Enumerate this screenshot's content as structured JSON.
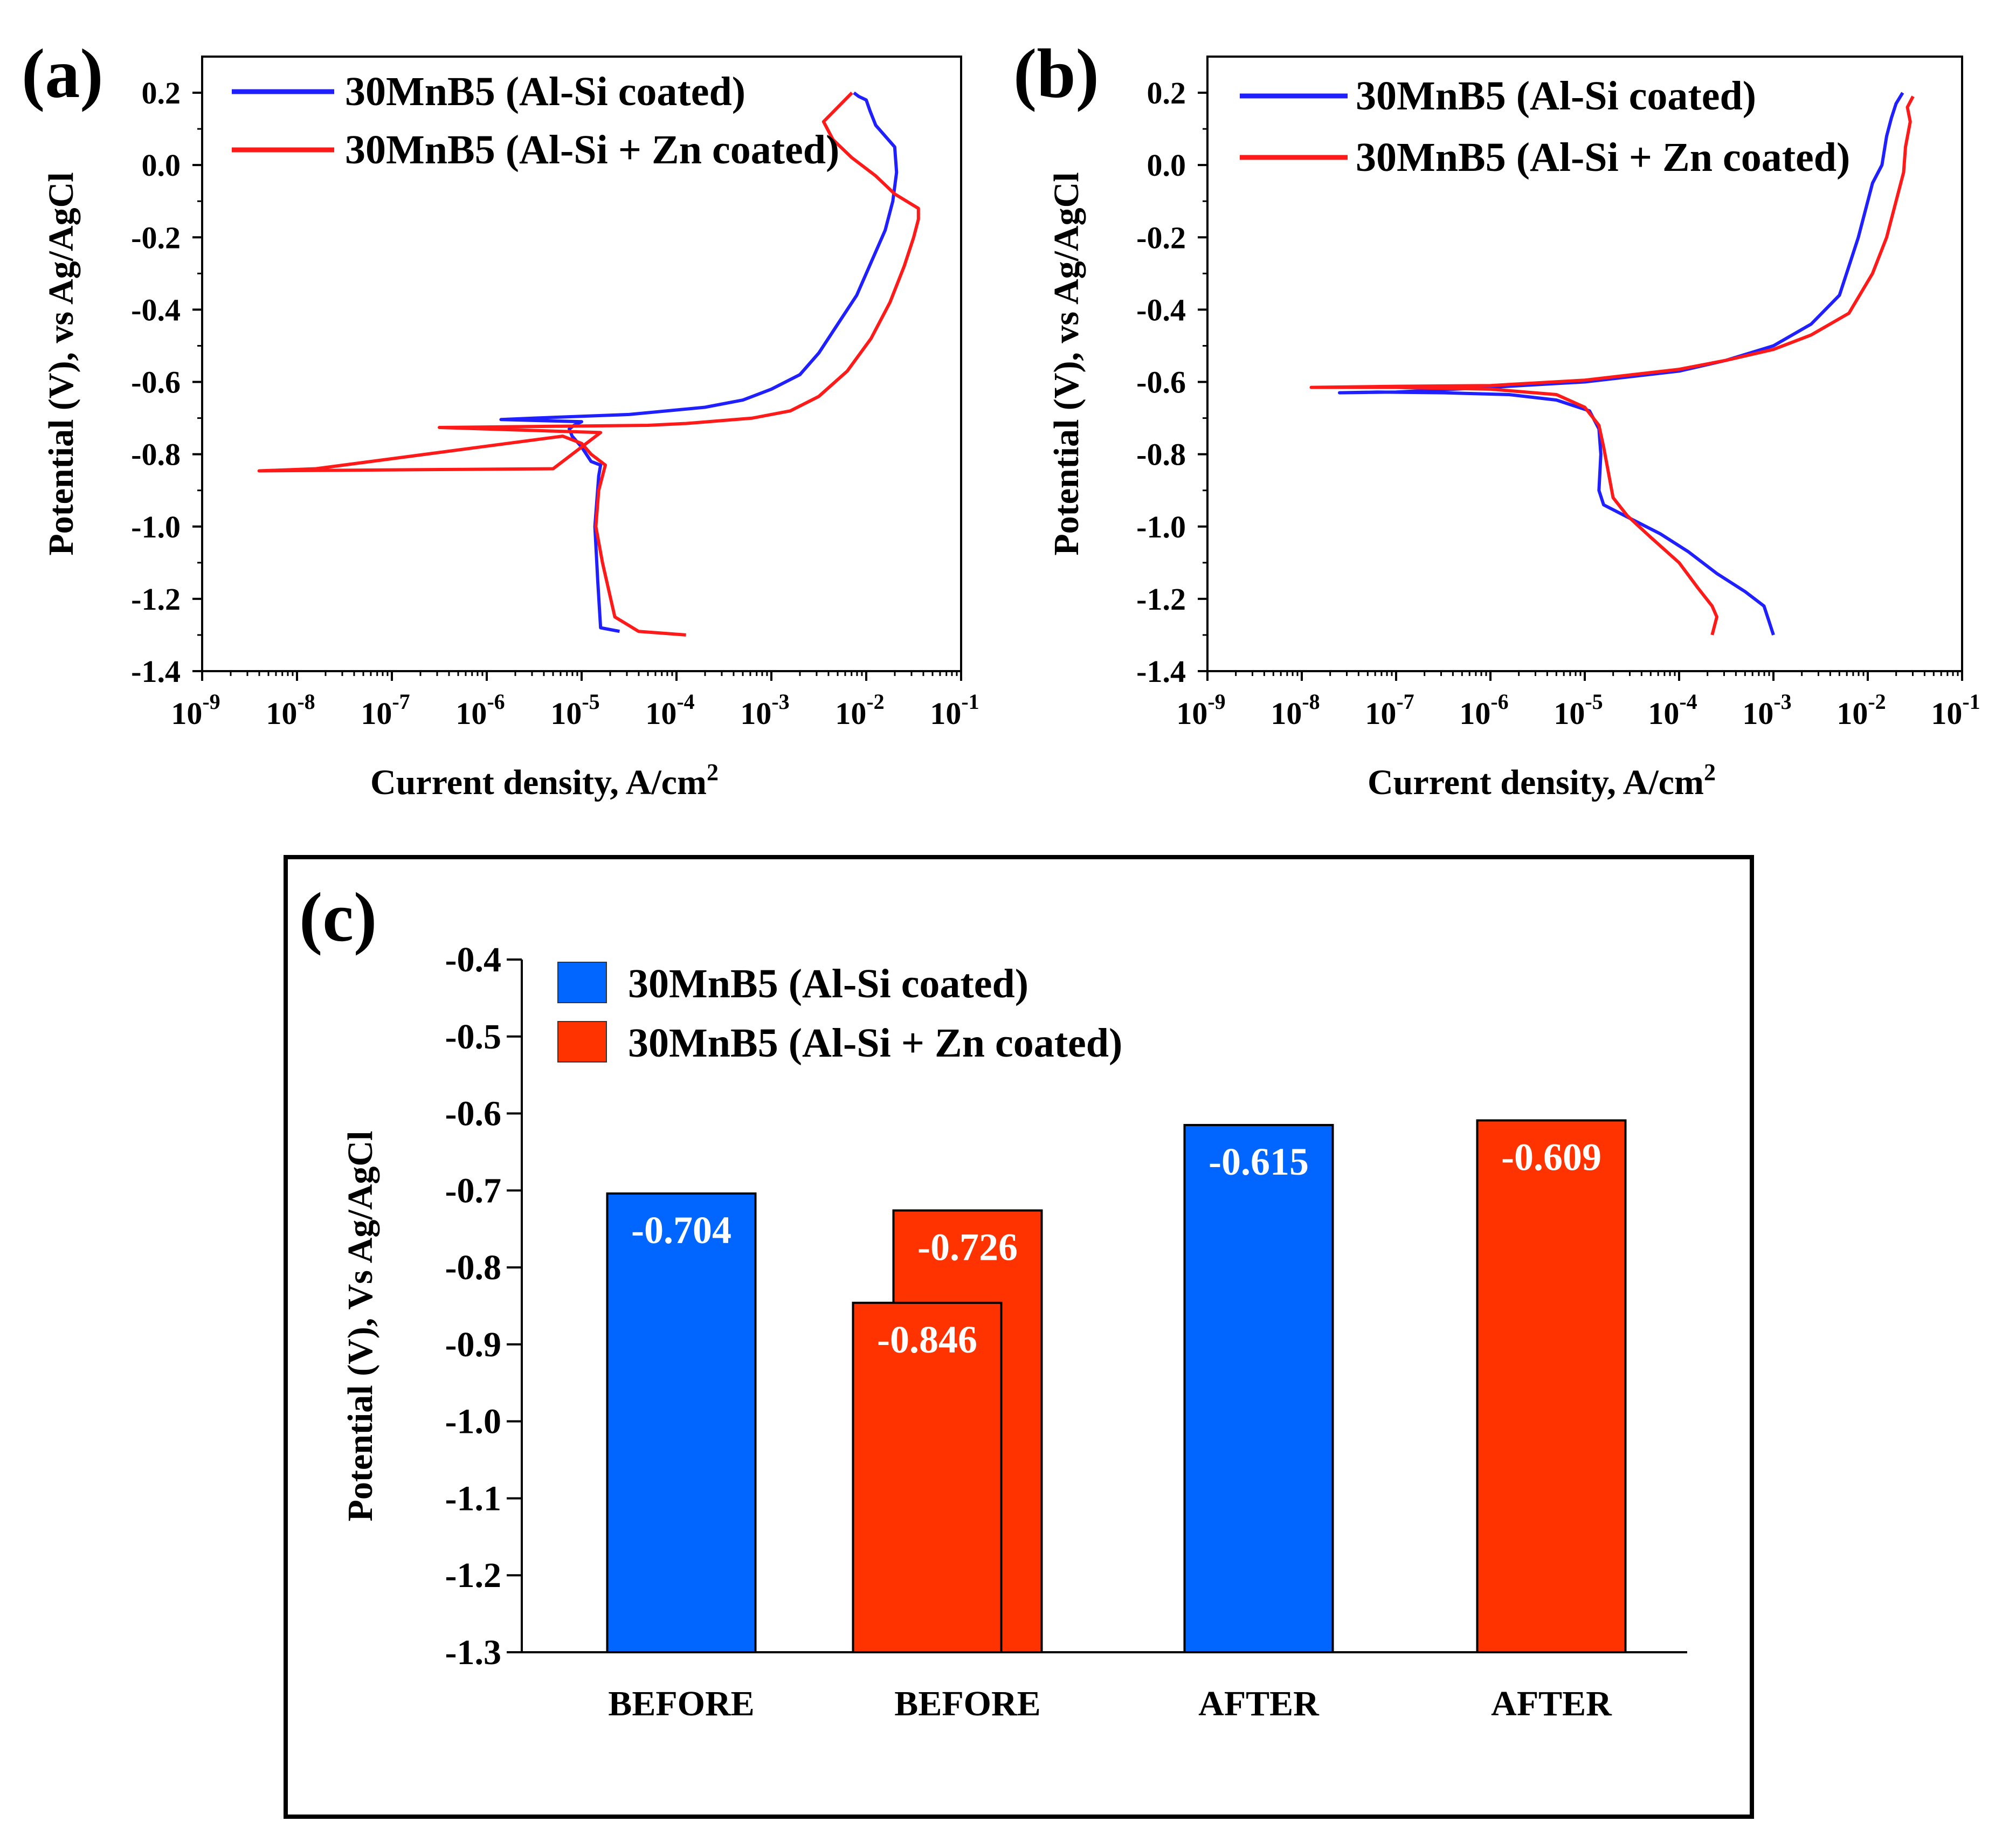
{
  "colors": {
    "blue": "#0055ff",
    "red": "#ff3300",
    "bar_blue": "#0066ff",
    "bar_red": "#ff3300",
    "line_blue": "#1f1fff",
    "line_red": "#ff1a1a"
  },
  "chart_data": [
    {
      "panel": "(a)",
      "type": "line",
      "xscale": "log",
      "xlabel": "Current density, A/cm",
      "xlabel_sup": "2",
      "ylabel": "Potential (V), vs Ag/AgCl",
      "xlim_exp": [
        -9,
        -1
      ],
      "ylim": [
        -1.4,
        0.3
      ],
      "xticks": [
        "10",
        "10",
        "10",
        "10",
        "10",
        "10",
        "10",
        "10",
        "10"
      ],
      "xtick_exps": [
        "-9",
        "-8",
        "-7",
        "-6",
        "-5",
        "-4",
        "-3",
        "-2",
        "-1"
      ],
      "yticks": [
        "0.2",
        "0.0",
        "-0.2",
        "-0.4",
        "-0.6",
        "-0.8",
        "-1.0",
        "-1.2",
        "-1.4"
      ],
      "ytick_values": [
        0.2,
        0.0,
        -0.2,
        -0.4,
        -0.6,
        -0.8,
        -1.0,
        -1.2,
        -1.4
      ],
      "legend": [
        "30MnB5 (Al-Si coated)",
        "30MnB5 (Al-Si + Zn coated)"
      ],
      "series": [
        {
          "name": "30MnB5 (Al-Si coated)",
          "log_x": [
            -4.6,
            -4.8,
            -4.83,
            -4.86,
            -4.82,
            -4.8,
            -4.9,
            -5.0,
            -5.1,
            -5.13,
            -5.08,
            -5.0,
            -5.85,
            -5.5,
            -4.5,
            -3.7,
            -3.3,
            -3.0,
            -2.7,
            -2.5,
            -2.3,
            -2.1,
            -1.95,
            -1.8,
            -1.72,
            -1.68,
            -1.7,
            -1.9,
            -1.96,
            -2.0,
            -2.08,
            -2.13
          ],
          "y": [
            -1.29,
            -1.28,
            -1.15,
            -1.0,
            -0.86,
            -0.83,
            -0.82,
            -0.78,
            -0.75,
            -0.73,
            -0.72,
            -0.71,
            -0.704,
            -0.7,
            -0.69,
            -0.67,
            -0.65,
            -0.62,
            -0.58,
            -0.52,
            -0.44,
            -0.36,
            -0.27,
            -0.18,
            -0.1,
            -0.02,
            0.05,
            0.11,
            0.15,
            0.18,
            0.19,
            0.2
          ]
        },
        {
          "name": "30MnB5 (Al-Si + Zn coated)",
          "log_x": [
            -3.9,
            -4.4,
            -4.65,
            -4.78,
            -4.85,
            -4.82,
            -4.75,
            -4.9,
            -5.0,
            -5.2,
            -7.8,
            -8.4,
            -5.3,
            -4.8,
            -6.5,
            -4.3,
            -3.9,
            -3.2,
            -2.8,
            -2.5,
            -2.2,
            -1.95,
            -1.75,
            -1.6,
            -1.5,
            -1.45,
            -1.45,
            -1.7,
            -1.9,
            -2.15,
            -2.35,
            -2.45,
            -2.15
          ],
          "y": [
            -1.3,
            -1.29,
            -1.25,
            -1.1,
            -1.0,
            -0.9,
            -0.83,
            -0.8,
            -0.77,
            -0.75,
            -0.84,
            -0.846,
            -0.84,
            -0.74,
            -0.726,
            -0.72,
            -0.715,
            -0.7,
            -0.68,
            -0.64,
            -0.57,
            -0.48,
            -0.38,
            -0.28,
            -0.2,
            -0.15,
            -0.12,
            -0.08,
            -0.03,
            0.02,
            0.07,
            0.12,
            0.2
          ]
        }
      ]
    },
    {
      "panel": "(b)",
      "type": "line",
      "xscale": "log",
      "xlabel": "Current density, A/cm",
      "xlabel_sup": "2",
      "ylabel": "Potential (V), vs Ag/AgCl",
      "xlim_exp": [
        -9,
        -1
      ],
      "ylim": [
        -1.4,
        0.3
      ],
      "xticks": [
        "10",
        "10",
        "10",
        "10",
        "10",
        "10",
        "10",
        "10",
        "10"
      ],
      "xtick_exps": [
        "-9",
        "-8",
        "-7",
        "-6",
        "-5",
        "-4",
        "-3",
        "-2",
        "-1"
      ],
      "yticks": [
        "0.2",
        "0.0",
        "-0.2",
        "-0.4",
        "-0.6",
        "-0.8",
        "-1.0",
        "-1.2",
        "-1.4"
      ],
      "ytick_values": [
        0.2,
        0.0,
        -0.2,
        -0.4,
        -0.6,
        -0.8,
        -1.0,
        -1.2,
        -1.4
      ],
      "legend": [
        "30MnB5 (Al-Si coated)",
        "30MnB5 (Al-Si + Zn coated)"
      ],
      "series": [
        {
          "name": "30MnB5 (Al-Si coated)",
          "log_x": [
            -3.0,
            -3.05,
            -3.1,
            -3.3,
            -3.6,
            -3.9,
            -4.2,
            -4.5,
            -4.8,
            -4.85,
            -4.83,
            -4.85,
            -4.95,
            -5.3,
            -5.8,
            -6.5,
            -7.2,
            -7.6,
            -7.0,
            -6.0,
            -5.0,
            -4.0,
            -3.5,
            -3.0,
            -2.6,
            -2.3,
            -2.1,
            -1.95,
            -1.85,
            -1.8,
            -1.75,
            -1.7,
            -1.63
          ],
          "y": [
            -1.3,
            -1.26,
            -1.22,
            -1.18,
            -1.13,
            -1.07,
            -1.02,
            -0.98,
            -0.94,
            -0.9,
            -0.8,
            -0.73,
            -0.68,
            -0.65,
            -0.635,
            -0.63,
            -0.628,
            -0.63,
            -0.628,
            -0.615,
            -0.6,
            -0.57,
            -0.54,
            -0.5,
            -0.44,
            -0.36,
            -0.2,
            -0.05,
            0.0,
            0.08,
            0.13,
            0.17,
            0.2
          ]
        },
        {
          "name": "30MnB5 (Al-Si + Zn coated)",
          "log_x": [
            -3.65,
            -3.6,
            -3.65,
            -3.8,
            -4.0,
            -4.3,
            -4.55,
            -4.7,
            -4.75,
            -4.8,
            -4.85,
            -5.0,
            -5.3,
            -6.0,
            -7.0,
            -7.9,
            -7.0,
            -6.0,
            -5.0,
            -4.0,
            -3.5,
            -3.0,
            -2.6,
            -2.2,
            -1.95,
            -1.8,
            -1.7,
            -1.62,
            -1.6,
            -1.55,
            -1.58,
            -1.52
          ],
          "y": [
            -1.3,
            -1.25,
            -1.22,
            -1.17,
            -1.1,
            -1.03,
            -0.97,
            -0.92,
            -0.85,
            -0.78,
            -0.72,
            -0.67,
            -0.635,
            -0.62,
            -0.615,
            -0.615,
            -0.612,
            -0.61,
            -0.595,
            -0.565,
            -0.54,
            -0.51,
            -0.47,
            -0.41,
            -0.3,
            -0.2,
            -0.1,
            -0.02,
            0.05,
            0.12,
            0.16,
            0.19
          ]
        }
      ]
    },
    {
      "panel": "(c)",
      "type": "bar",
      "ylabel": "Potential (V), Vs Ag/AgCl",
      "ylim": [
        -1.3,
        -0.4
      ],
      "yticks": [
        "-0.4",
        "-0.5",
        "-0.6",
        "-0.7",
        "-0.8",
        "-0.9",
        "-1.0",
        "-1.1",
        "-1.2",
        "-1.3"
      ],
      "ytick_values": [
        -0.4,
        -0.5,
        -0.6,
        -0.7,
        -0.8,
        -0.9,
        -1.0,
        -1.1,
        -1.2,
        -1.3
      ],
      "categories": [
        "BEFORE",
        "BEFORE",
        "AFTER",
        "AFTER"
      ],
      "legend": [
        "30MnB5 (Al-Si coated)",
        "30MnB5 (Al-Si + Zn coated)"
      ],
      "bars": [
        {
          "category_index": 0,
          "series": 0,
          "value": -0.704,
          "label": "-0.704",
          "offset": 0
        },
        {
          "category_index": 1,
          "series": 1,
          "value": -0.726,
          "label": "-0.726",
          "offset": 0
        },
        {
          "category_index": 1,
          "series": 1,
          "value": -0.846,
          "label": "-0.846",
          "offset": -1
        },
        {
          "category_index": 2,
          "series": 0,
          "value": -0.615,
          "label": "-0.615",
          "offset": 0
        },
        {
          "category_index": 3,
          "series": 1,
          "value": -0.609,
          "label": "-0.609",
          "offset": 0
        }
      ]
    }
  ]
}
